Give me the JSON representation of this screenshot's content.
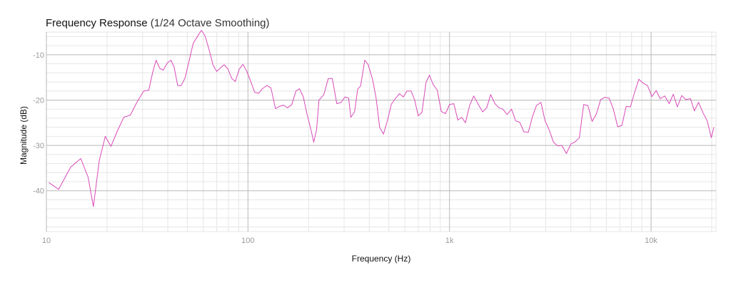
{
  "chart_data": {
    "type": "line",
    "title": "Frequency Response",
    "subtitle": "(1/24 Octave Smoothing)",
    "xlabel": "Frequency (Hz)",
    "ylabel": "Magnitude (dB)",
    "x_scale": "log",
    "xlim": [
      10,
      21000
    ],
    "ylim": [
      -49,
      -5
    ],
    "grid": true,
    "colors": {
      "line": "#d94bb8",
      "grid_major": "#b8b8b8",
      "grid_minor": "#e6e6e6",
      "tick_text": "#9a9a9a"
    },
    "x_ticks": [
      {
        "value": 10,
        "label": "10"
      },
      {
        "value": 100,
        "label": "100"
      },
      {
        "value": 1000,
        "label": "1k"
      },
      {
        "value": 10000,
        "label": "10k"
      }
    ],
    "y_ticks": [
      {
        "value": -10,
        "label": "-10"
      },
      {
        "value": -20,
        "label": "-20"
      },
      {
        "value": -30,
        "label": "-30"
      },
      {
        "value": -40,
        "label": "-40"
      }
    ],
    "series": [
      {
        "values": [
          [
            10.3,
            -38.2
          ],
          [
            11.5,
            -39.7
          ],
          [
            13.2,
            -34.8
          ],
          [
            14.8,
            -32.9
          ],
          [
            16.1,
            -37.0
          ],
          [
            17.1,
            -43.5
          ],
          [
            18.3,
            -33.3
          ],
          [
            19.6,
            -28.0
          ],
          [
            20.9,
            -30.2
          ],
          [
            22.4,
            -27.0
          ],
          [
            24.2,
            -23.8
          ],
          [
            26.1,
            -23.3
          ],
          [
            28.2,
            -20.4
          ],
          [
            30.4,
            -18.0
          ],
          [
            32.2,
            -17.8
          ],
          [
            33.7,
            -13.8
          ],
          [
            35.0,
            -11.2
          ],
          [
            36.5,
            -13.0
          ],
          [
            38.0,
            -13.4
          ],
          [
            39.8,
            -11.8
          ],
          [
            41.5,
            -11.2
          ],
          [
            43.0,
            -12.7
          ],
          [
            44.8,
            -16.8
          ],
          [
            46.6,
            -16.8
          ],
          [
            48.7,
            -15.2
          ],
          [
            51.1,
            -11.3
          ],
          [
            53.5,
            -7.5
          ],
          [
            56.3,
            -5.9
          ],
          [
            58.8,
            -4.6
          ],
          [
            61.2,
            -5.8
          ],
          [
            64.0,
            -8.7
          ],
          [
            67.0,
            -12.2
          ],
          [
            70.0,
            -13.7
          ],
          [
            73.0,
            -12.9
          ],
          [
            76.2,
            -12.2
          ],
          [
            79.5,
            -13.1
          ],
          [
            83.0,
            -15.2
          ],
          [
            86.5,
            -15.9
          ],
          [
            90.5,
            -13.2
          ],
          [
            94.5,
            -12.1
          ],
          [
            98.5,
            -13.6
          ],
          [
            103,
            -15.8
          ],
          [
            108,
            -18.3
          ],
          [
            113,
            -18.5
          ],
          [
            118,
            -17.5
          ],
          [
            124,
            -16.8
          ],
          [
            130,
            -17.3
          ],
          [
            137,
            -21.9
          ],
          [
            143,
            -21.4
          ],
          [
            150,
            -21.1
          ],
          [
            157,
            -21.7
          ],
          [
            165,
            -21.0
          ],
          [
            173,
            -18.0
          ],
          [
            180,
            -17.5
          ],
          [
            188,
            -19.2
          ],
          [
            196,
            -23.0
          ],
          [
            205,
            -26.4
          ],
          [
            212,
            -29.3
          ],
          [
            219,
            -26.5
          ],
          [
            225,
            -20.0
          ],
          [
            238,
            -18.8
          ],
          [
            250,
            -15.3
          ],
          [
            262,
            -15.2
          ],
          [
            276,
            -20.8
          ],
          [
            290,
            -20.5
          ],
          [
            303,
            -19.3
          ],
          [
            316,
            -19.6
          ],
          [
            324,
            -23.8
          ],
          [
            338,
            -22.6
          ],
          [
            350,
            -17.6
          ],
          [
            362,
            -16.9
          ],
          [
            380,
            -11.2
          ],
          [
            395,
            -12.2
          ],
          [
            415,
            -15.4
          ],
          [
            432,
            -19.5
          ],
          [
            450,
            -26.0
          ],
          [
            470,
            -27.5
          ],
          [
            490,
            -24.8
          ],
          [
            515,
            -20.9
          ],
          [
            540,
            -19.6
          ],
          [
            565,
            -18.6
          ],
          [
            590,
            -19.3
          ],
          [
            615,
            -18.0
          ],
          [
            645,
            -18.0
          ],
          [
            672,
            -20.0
          ],
          [
            700,
            -23.5
          ],
          [
            730,
            -22.7
          ],
          [
            765,
            -16.1
          ],
          [
            795,
            -14.5
          ],
          [
            830,
            -16.6
          ],
          [
            870,
            -17.8
          ],
          [
            910,
            -22.5
          ],
          [
            955,
            -23.0
          ],
          [
            1000,
            -21.0
          ],
          [
            1050,
            -20.8
          ],
          [
            1100,
            -24.4
          ],
          [
            1150,
            -23.8
          ],
          [
            1200,
            -25.0
          ],
          [
            1260,
            -21.1
          ],
          [
            1320,
            -19.1
          ],
          [
            1390,
            -21.0
          ],
          [
            1460,
            -22.6
          ],
          [
            1530,
            -21.7
          ],
          [
            1600,
            -18.8
          ],
          [
            1680,
            -20.8
          ],
          [
            1760,
            -21.7
          ],
          [
            1840,
            -22.0
          ],
          [
            1930,
            -23.2
          ],
          [
            2030,
            -22.0
          ],
          [
            2130,
            -24.6
          ],
          [
            2230,
            -24.9
          ],
          [
            2340,
            -27.0
          ],
          [
            2460,
            -27.1
          ],
          [
            2580,
            -23.6
          ],
          [
            2700,
            -21.2
          ],
          [
            2840,
            -20.5
          ],
          [
            2980,
            -24.6
          ],
          [
            3130,
            -26.7
          ],
          [
            3280,
            -29.3
          ],
          [
            3440,
            -30.1
          ],
          [
            3610,
            -30.0
          ],
          [
            3800,
            -31.8
          ],
          [
            4000,
            -29.7
          ],
          [
            4200,
            -29.2
          ],
          [
            4410,
            -28.3
          ],
          [
            4630,
            -21.0
          ],
          [
            4860,
            -21.2
          ],
          [
            5100,
            -24.7
          ],
          [
            5360,
            -23.0
          ],
          [
            5620,
            -19.9
          ],
          [
            5900,
            -19.4
          ],
          [
            6200,
            -19.6
          ],
          [
            6500,
            -22.0
          ],
          [
            6830,
            -25.9
          ],
          [
            7160,
            -25.6
          ],
          [
            7520,
            -21.4
          ],
          [
            7900,
            -21.5
          ],
          [
            8300,
            -18.2
          ],
          [
            8700,
            -15.4
          ],
          [
            9150,
            -16.3
          ],
          [
            9600,
            -16.8
          ],
          [
            10100,
            -19.2
          ],
          [
            10600,
            -17.9
          ],
          [
            11100,
            -19.7
          ],
          [
            11700,
            -19.1
          ],
          [
            12300,
            -20.8
          ],
          [
            12900,
            -18.7
          ],
          [
            13500,
            -21.5
          ],
          [
            14200,
            -19.0
          ],
          [
            14900,
            -19.9
          ],
          [
            15700,
            -19.7
          ],
          [
            16400,
            -22.4
          ],
          [
            17200,
            -20.5
          ],
          [
            18100,
            -22.8
          ],
          [
            19000,
            -24.6
          ],
          [
            19900,
            -28.3
          ],
          [
            20500,
            -26.0
          ]
        ]
      }
    ]
  }
}
